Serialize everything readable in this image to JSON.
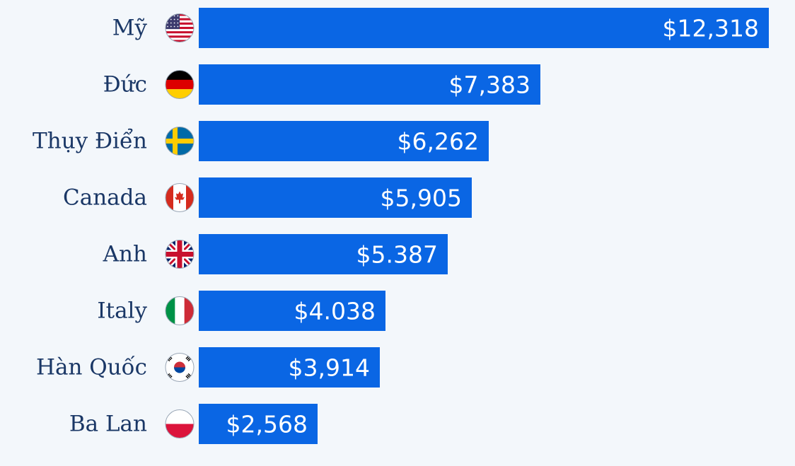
{
  "chart_data": {
    "type": "bar",
    "orientation": "horizontal",
    "title": "",
    "xlabel": "",
    "ylabel": "",
    "categories": [
      "Mỹ",
      "Đức",
      "Thụy Điển",
      "Canada",
      "Anh",
      "Italy",
      "Hàn Quốc",
      "Ba Lan"
    ],
    "flags": [
      "us-flag-icon",
      "germany-flag-icon",
      "sweden-flag-icon",
      "canada-flag-icon",
      "uk-flag-icon",
      "italy-flag-icon",
      "korea-flag-icon",
      "poland-flag-icon"
    ],
    "values": [
      12318,
      7383,
      6262,
      5905,
      5387,
      4038,
      3914,
      2568
    ],
    "value_labels": [
      "$12,318",
      "$7,383",
      "$6,262",
      "$5,905",
      "$5.387",
      "$4.038",
      "$3,914",
      "$2,568"
    ],
    "xlim": [
      0,
      12318
    ],
    "grid": false,
    "bar_color": "#0a66e4",
    "label_color": "#1a3766",
    "background": "#f3f7fb"
  }
}
